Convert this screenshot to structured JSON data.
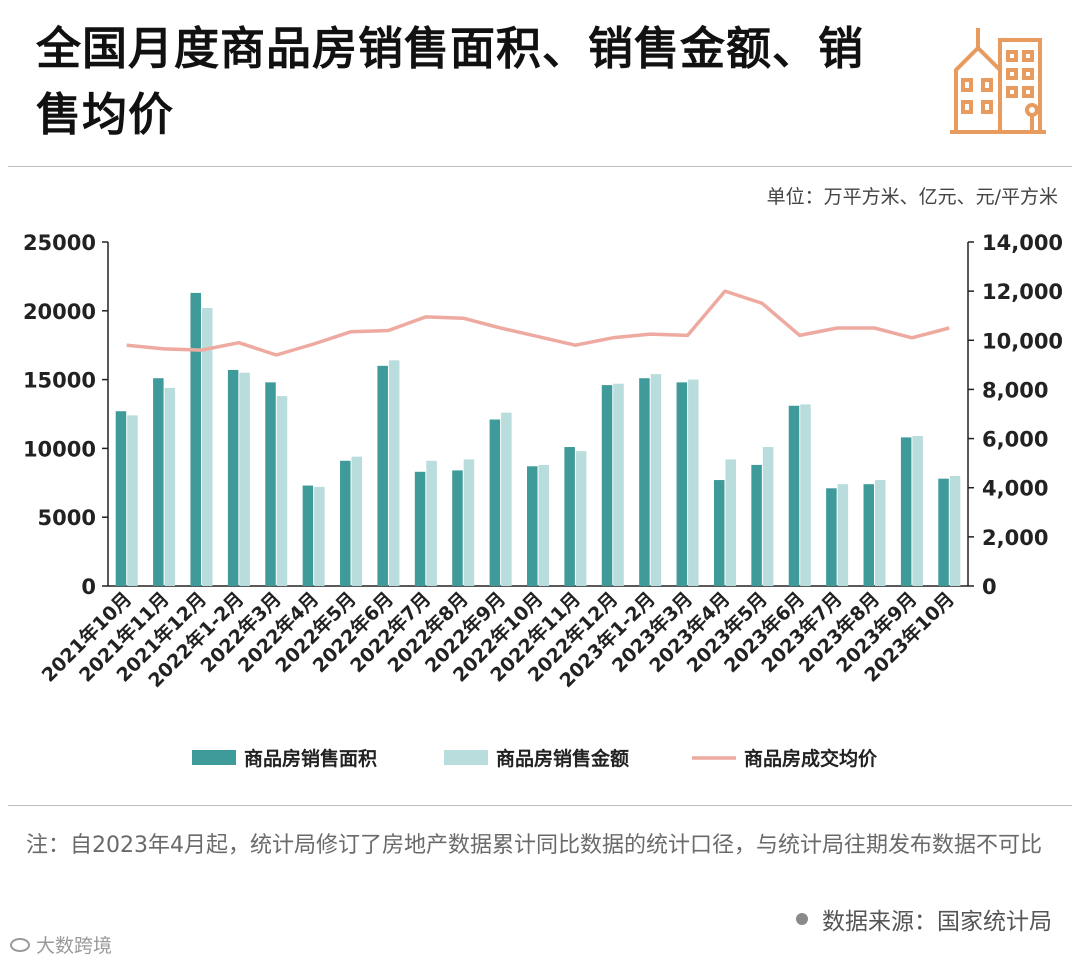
{
  "title": "全国月度商品房销售面积、销售金额、销售均价",
  "unit": "单位：万平方米、亿元、元/平方米",
  "note": "注：自2023年4月起，统计局修订了房地产数据累计同比数据的统计口径，与统计局往期发布数据不可比",
  "source": "数据来源：国家统计局",
  "watermark_brand": "大数跨境",
  "colors": {
    "area": "#3f9a9a",
    "amount": "#b9dcdc",
    "price": "#eeaaa0",
    "logo": "#e79b5e"
  },
  "chart_data": {
    "type": "bar",
    "categories": [
      "2021年10月",
      "2021年11月",
      "2021年12月",
      "2022年1-2月",
      "2022年3月",
      "2022年4月",
      "2022年5月",
      "2022年6月",
      "2022年7月",
      "2022年8月",
      "2022年9月",
      "2022年10月",
      "2022年11月",
      "2022年12月",
      "2023年1-2月",
      "2023年3月",
      "2023年4月",
      "2023年5月",
      "2023年6月",
      "2023年7月",
      "2023年8月",
      "2023年9月",
      "2023年10月"
    ],
    "series": [
      {
        "name": "商品房销售面积",
        "type": "bar",
        "axis": "left",
        "values": [
          12700,
          15100,
          21300,
          15700,
          14800,
          7300,
          9100,
          16000,
          8300,
          8400,
          12100,
          8700,
          10100,
          14600,
          15100,
          14800,
          7700,
          8800,
          13100,
          7100,
          7400,
          10800,
          7800
        ]
      },
      {
        "name": "商品房销售金额",
        "type": "bar",
        "axis": "left",
        "values": [
          12400,
          14400,
          20200,
          15500,
          13800,
          7200,
          9400,
          16400,
          9100,
          9200,
          12600,
          8800,
          9800,
          14700,
          15400,
          15000,
          9200,
          10100,
          13200,
          7400,
          7700,
          10900,
          8000
        ]
      },
      {
        "name": "商品房成交均价",
        "type": "line",
        "axis": "right",
        "values": [
          9800,
          9650,
          9600,
          9900,
          9400,
          9850,
          10350,
          10400,
          10950,
          10900,
          10500,
          10150,
          9800,
          10100,
          10250,
          10200,
          12000,
          11500,
          10200,
          10500,
          10500,
          10100,
          10500
        ]
      }
    ],
    "y_left": {
      "min": 0,
      "max": 25000,
      "ticks": [
        0,
        5000,
        10000,
        15000,
        20000,
        25000
      ],
      "tick_labels": [
        "0",
        "5000",
        "10000",
        "15000",
        "20000",
        "25000"
      ]
    },
    "y_right": {
      "min": 0,
      "max": 14000,
      "ticks": [
        0,
        2000,
        4000,
        6000,
        8000,
        10000,
        12000,
        14000
      ],
      "tick_labels": [
        "0",
        "2,000",
        "4,000",
        "6,000",
        "8,000",
        "10,000",
        "12,000",
        "14,000"
      ]
    },
    "grid": false,
    "legend_position": "bottom"
  }
}
